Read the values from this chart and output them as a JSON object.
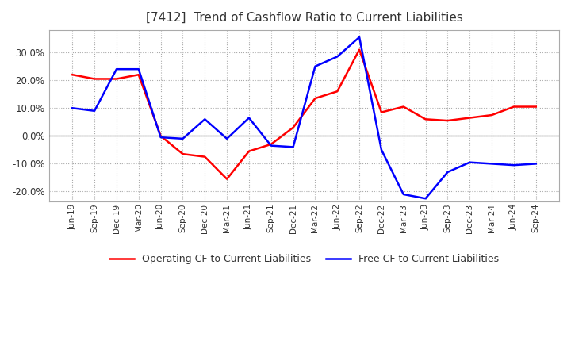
{
  "title": "[7412]  Trend of Cashflow Ratio to Current Liabilities",
  "title_fontsize": 11,
  "legend_labels": [
    "Operating CF to Current Liabilities",
    "Free CF to Current Liabilities"
  ],
  "legend_colors": [
    "#ff0000",
    "#0000ff"
  ],
  "x_labels": [
    "Jun-19",
    "Sep-19",
    "Dec-19",
    "Mar-20",
    "Jun-20",
    "Sep-20",
    "Dec-20",
    "Mar-21",
    "Jun-21",
    "Sep-21",
    "Dec-21",
    "Mar-22",
    "Jun-22",
    "Sep-22",
    "Dec-22",
    "Mar-23",
    "Jun-23",
    "Sep-23",
    "Dec-23",
    "Mar-24",
    "Jun-24",
    "Sep-24"
  ],
  "operating_cf": [
    0.22,
    0.205,
    0.205,
    0.22,
    0.0,
    -0.065,
    -0.075,
    -0.155,
    -0.055,
    -0.03,
    0.03,
    0.135,
    0.16,
    0.31,
    0.085,
    0.105,
    0.06,
    0.055,
    0.065,
    0.075,
    0.105,
    0.105
  ],
  "free_cf": [
    0.1,
    0.09,
    0.24,
    0.24,
    -0.005,
    -0.01,
    0.06,
    -0.01,
    0.065,
    -0.035,
    -0.04,
    0.25,
    0.285,
    0.355,
    -0.05,
    -0.21,
    -0.225,
    -0.13,
    -0.095,
    -0.1,
    -0.105,
    -0.1
  ],
  "ylim": [
    -0.235,
    0.38
  ],
  "yticks": [
    -0.2,
    -0.1,
    0.0,
    0.1,
    0.2,
    0.3
  ],
  "background_color": "#ffffff",
  "plot_bg_color": "#ffffff",
  "grid_color": "#aaaaaa",
  "line_width": 1.8
}
